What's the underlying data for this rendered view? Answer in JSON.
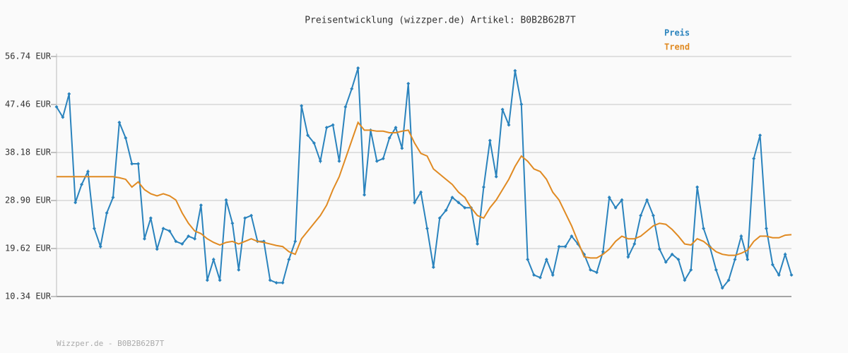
{
  "chart_data": {
    "type": "line",
    "title": "Preisentwicklung (wizzper.de) Artikel: B0B2B62B7T",
    "footer": "Wizzper.de - B0B2B62B7T",
    "ylim": [
      10.34,
      56.74
    ],
    "yticks": [
      {
        "value": 10.34,
        "label": "10.34 EUR"
      },
      {
        "value": 19.62,
        "label": "19.62 EUR"
      },
      {
        "value": 28.9,
        "label": "28.90 EUR"
      },
      {
        "value": 38.18,
        "label": "38.18 EUR"
      },
      {
        "value": 47.46,
        "label": "47.46 EUR"
      },
      {
        "value": 56.74,
        "label": "56.74 EUR"
      }
    ],
    "grid": true,
    "legend": "top-right",
    "series": [
      {
        "name": "Preis",
        "color": "#2a83bd",
        "markers": true,
        "values": [
          47.0,
          45.0,
          49.5,
          28.5,
          32,
          34.5,
          23.5,
          20,
          26.5,
          29.5,
          44,
          41,
          36,
          36,
          21.5,
          25.5,
          19.5,
          23.5,
          23,
          21,
          20.5,
          22,
          21.5,
          28,
          13.5,
          17.5,
          13.5,
          29,
          24.5,
          15.5,
          25.5,
          26,
          21,
          21,
          13.5,
          13,
          13,
          17.5,
          21,
          47.2,
          41.5,
          40,
          36.5,
          43,
          43.5,
          36.5,
          47,
          50.5,
          54.5,
          30,
          42.5,
          36.5,
          37,
          41,
          43,
          39,
          51.5,
          28.5,
          30.5,
          23.5,
          16,
          25.5,
          27,
          29.5,
          28.5,
          27.5,
          27.5,
          20.5,
          31.5,
          40.5,
          33.5,
          46.5,
          43.5,
          54,
          47.5,
          17.5,
          14.5,
          14,
          17.5,
          14.5,
          20,
          20,
          22,
          20.5,
          18.5,
          15.5,
          15,
          19,
          29.5,
          27.5,
          29,
          18,
          20.5,
          26,
          29,
          26,
          19.5,
          17,
          18.5,
          17.5,
          13.5,
          15.5,
          31.5,
          23.5,
          20,
          15.5,
          12,
          13.5,
          17.5,
          22,
          17.5,
          37,
          41.5,
          23.5,
          16.5,
          14.5,
          18.5,
          14.5
        ]
      },
      {
        "name": "Trend",
        "color": "#e08a22",
        "markers": false,
        "values": [
          33.5,
          33.5,
          33.5,
          33.5,
          33.5,
          33.5,
          33.5,
          33.5,
          33.5,
          33.5,
          33.3,
          33,
          31.5,
          32.5,
          31,
          30.2,
          29.8,
          30.2,
          29.8,
          29,
          26.5,
          24.5,
          23,
          22.5,
          21.5,
          20.8,
          20.3,
          20.8,
          21,
          20.5,
          21,
          21.5,
          21,
          20.8,
          20.5,
          20.2,
          20,
          19,
          18.5,
          21.5,
          23,
          24.5,
          26,
          28,
          31,
          33.5,
          37,
          40.5,
          44,
          42.5,
          42.5,
          42.3,
          42.3,
          42,
          42,
          42.3,
          42.5,
          40,
          38,
          37.5,
          35,
          34,
          33,
          32,
          30.5,
          29.5,
          27.5,
          26,
          25.5,
          27.5,
          29,
          31,
          33,
          35.5,
          37.5,
          36.5,
          35,
          34.5,
          33,
          30.5,
          29,
          26.5,
          24,
          21,
          18,
          17.8,
          17.8,
          18.5,
          19.5,
          21,
          22,
          21.5,
          21.5,
          22,
          23,
          24,
          24.5,
          24.3,
          23.3,
          22,
          20.5,
          20.3,
          21.5,
          21,
          20,
          19,
          18.5,
          18.3,
          18.3,
          18.7,
          19.3,
          21,
          22,
          22,
          21.7,
          21.7,
          22.2,
          22.3
        ]
      }
    ]
  }
}
